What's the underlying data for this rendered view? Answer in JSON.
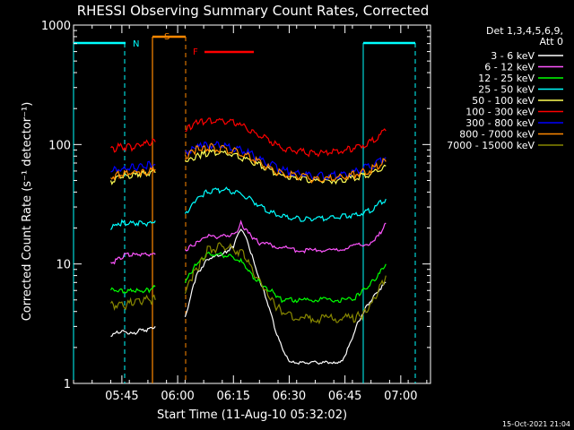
{
  "chart_data": {
    "type": "line",
    "title": "RHESSI Observing Summary Count Rates, Corrected",
    "xlabel": "Start Time (11-Aug-10 05:32:02)",
    "ylabel": "Corrected Count Rate (s⁻¹ detector⁻¹)",
    "x_unit": "minutes",
    "xlim": [
      0,
      96
    ],
    "ylim": [
      1,
      1000
    ],
    "yscale": "log",
    "x_ticks": [
      {
        "x": 13,
        "label": "05:45"
      },
      {
        "x": 28,
        "label": "06:00"
      },
      {
        "x": 43,
        "label": "06:15"
      },
      {
        "x": 58,
        "label": "06:30"
      },
      {
        "x": 73,
        "label": "06:45"
      },
      {
        "x": 88,
        "label": "07:00"
      }
    ],
    "y_ticks": [
      {
        "y": 1,
        "label": "1"
      },
      {
        "y": 10,
        "label": "10"
      },
      {
        "y": 100,
        "label": "100"
      },
      {
        "y": 1000,
        "label": "1000"
      }
    ],
    "legend": {
      "position": "right",
      "title_lines": [
        "Det 1,3,4,5,6,9,",
        "Att 0"
      ]
    },
    "series": [
      {
        "name": "3 - 6 keV",
        "color": "#ffffff",
        "x": [
          10,
          12,
          14,
          16,
          18,
          20,
          22,
          30,
          33,
          36,
          40,
          43,
          45,
          47,
          49,
          52,
          54,
          56,
          58,
          62,
          66,
          70,
          72,
          74,
          76,
          78,
          80,
          82,
          84
        ],
        "y": [
          2.5,
          2.7,
          2.7,
          2.6,
          2.8,
          2.8,
          3.0,
          3.5,
          8,
          11,
          12,
          14,
          20,
          15,
          9,
          5,
          3,
          2,
          1.5,
          1.5,
          1.5,
          1.5,
          1.5,
          2,
          3,
          4,
          5,
          6,
          7
        ]
      },
      {
        "name": "6 - 12 keV",
        "color": "#ff55ff",
        "x": [
          10,
          12,
          14,
          16,
          18,
          20,
          22,
          30,
          33,
          36,
          40,
          44,
          45,
          47,
          50,
          55,
          60,
          65,
          70,
          75,
          80,
          82,
          84
        ],
        "y": [
          10,
          11,
          12,
          12,
          12,
          12,
          12,
          13,
          15,
          17,
          17,
          18,
          22,
          18,
          15,
          14,
          13,
          13,
          13,
          14,
          15,
          17,
          22
        ]
      },
      {
        "name": "12 - 25 keV",
        "color": "#00ff00",
        "x": [
          10,
          12,
          14,
          16,
          18,
          20,
          22,
          30,
          33,
          36,
          40,
          44,
          46,
          48,
          50,
          53,
          56,
          60,
          65,
          70,
          75,
          78,
          80,
          82,
          84
        ],
        "y": [
          6,
          6,
          6,
          6,
          6,
          6,
          6.5,
          7,
          10,
          12,
          12,
          11,
          10,
          8,
          7,
          6,
          5,
          5,
          5,
          5,
          5,
          6,
          7,
          8,
          10
        ]
      },
      {
        "name": "25 - 50 keV",
        "color": "#00ffff",
        "x": [
          10,
          12,
          14,
          16,
          18,
          20,
          22,
          30,
          33,
          36,
          40,
          44,
          48,
          52,
          56,
          60,
          64,
          68,
          72,
          76,
          80,
          84
        ],
        "y": [
          20,
          22,
          22,
          22,
          22,
          22,
          23,
          26,
          35,
          40,
          42,
          40,
          34,
          28,
          25,
          24,
          24,
          24,
          25,
          26,
          28,
          35
        ]
      },
      {
        "name": "50 - 100 keV",
        "color": "#ffff55",
        "x": [
          10,
          12,
          14,
          16,
          18,
          20,
          22,
          30,
          33,
          36,
          40,
          44,
          48,
          52,
          56,
          60,
          64,
          68,
          72,
          76,
          80,
          84
        ],
        "y": [
          48,
          52,
          55,
          55,
          57,
          57,
          58,
          72,
          80,
          85,
          85,
          80,
          72,
          62,
          55,
          52,
          50,
          50,
          50,
          53,
          57,
          66
        ]
      },
      {
        "name": "100 - 300 keV",
        "color": "#ff0000",
        "x": [
          10,
          12,
          14,
          16,
          18,
          20,
          22,
          30,
          33,
          36,
          40,
          44,
          48,
          52,
          56,
          60,
          64,
          68,
          72,
          76,
          80,
          84
        ],
        "y": [
          90,
          95,
          95,
          95,
          100,
          102,
          105,
          130,
          150,
          160,
          160,
          150,
          130,
          110,
          95,
          88,
          85,
          85,
          88,
          95,
          105,
          130
        ]
      },
      {
        "name": "300 - 800 keV",
        "color": "#0000ff",
        "x": [
          10,
          12,
          14,
          16,
          18,
          20,
          22,
          30,
          33,
          36,
          40,
          44,
          48,
          52,
          56,
          60,
          64,
          68,
          72,
          76,
          80,
          84
        ],
        "y": [
          60,
          62,
          63,
          64,
          66,
          67,
          68,
          85,
          95,
          100,
          98,
          92,
          82,
          70,
          62,
          57,
          55,
          55,
          56,
          60,
          66,
          78
        ]
      },
      {
        "name": "800 - 7000 keV",
        "color": "#ff8800",
        "x": [
          10,
          12,
          14,
          16,
          18,
          20,
          22,
          30,
          33,
          36,
          40,
          44,
          48,
          52,
          56,
          60,
          64,
          68,
          72,
          76,
          80,
          84
        ],
        "y": [
          53,
          56,
          58,
          58,
          60,
          60,
          62,
          80,
          90,
          95,
          92,
          87,
          78,
          66,
          58,
          54,
          52,
          52,
          53,
          56,
          62,
          72
        ]
      },
      {
        "name": "7000 - 15000 keV",
        "color": "#888800",
        "x": [
          10,
          12,
          14,
          16,
          18,
          20,
          22,
          30,
          33,
          36,
          40,
          44,
          46,
          48,
          50,
          53,
          56,
          60,
          65,
          70,
          75,
          78,
          80,
          82,
          84
        ],
        "y": [
          4.5,
          4.5,
          4.5,
          4.8,
          4.8,
          5,
          5,
          6,
          9,
          13,
          14,
          13,
          12,
          9,
          7,
          5,
          4,
          3.5,
          3.5,
          3.5,
          3.5,
          3.8,
          4.5,
          6,
          8
        ]
      }
    ],
    "annotations": [
      {
        "label": "N",
        "color": "#00ffff",
        "x": 15
      },
      {
        "label": "S",
        "color": "#ff8800",
        "x": 20
      },
      {
        "label": "F",
        "color": "#ff0000",
        "x": 31
      }
    ],
    "corner_text": "15-Oct-2021 21:04"
  }
}
